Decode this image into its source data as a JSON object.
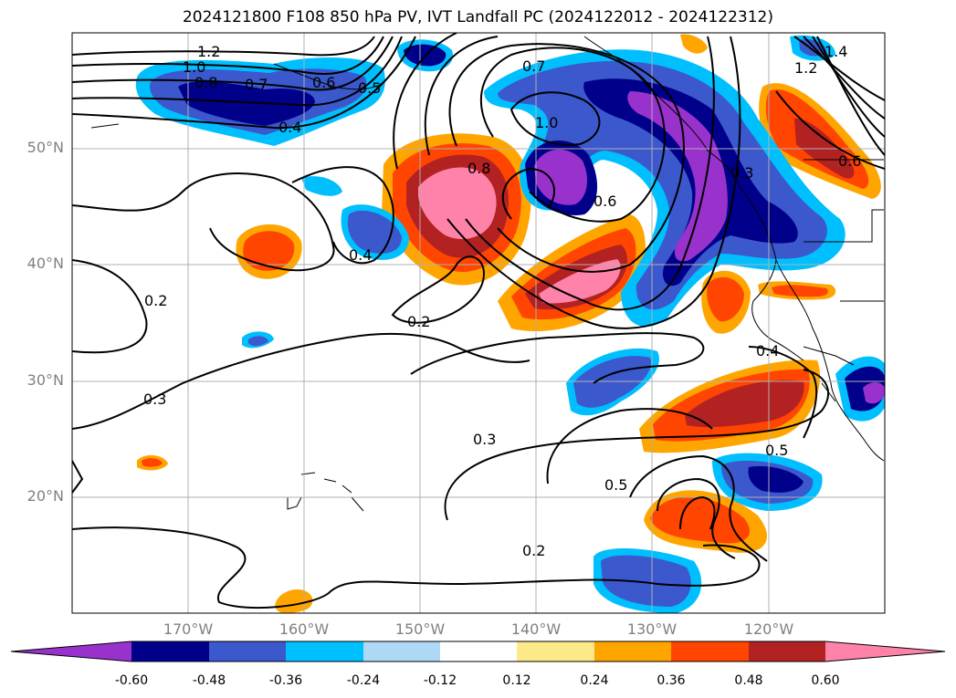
{
  "title": "2024121800 F108 850 hPa PV, IVT Landfall PC (2024122012 - 2024122312)",
  "map": {
    "projection": "lat-lon",
    "lon_range": [
      -180,
      -110
    ],
    "lat_range": [
      10,
      60
    ],
    "x_ticks": [
      "170°W",
      "160°W",
      "150°W",
      "140°W",
      "130°W",
      "120°W"
    ],
    "y_ticks": [
      "50°N",
      "40°N",
      "30°N",
      "20°N"
    ],
    "grid": true,
    "contour_labels": [
      "1.2",
      "1.0",
      "0.8",
      "0.7",
      "0.6",
      "0.5",
      "0.4",
      "0.7",
      "1.0",
      "0.8",
      "0.6",
      "0.4",
      "0.2",
      "0.2",
      "0.3",
      "0.3",
      "0.5",
      "0.5",
      "0.2",
      "0.4",
      "1.4",
      "1.2",
      "0.3",
      "0.6"
    ]
  },
  "colorbar": {
    "levels": [
      "-0.60",
      "-0.48",
      "-0.36",
      "-0.24",
      "-0.12",
      "0.12",
      "0.24",
      "0.36",
      "0.48",
      "0.60"
    ],
    "colors": [
      "#9932cc",
      "#00008b",
      "#3b58cc",
      "#00bfff",
      "#add8f6",
      "#ffffff",
      "#fbe98a",
      "#ffa500",
      "#ff4500",
      "#b22222",
      "#ff83a8"
    ],
    "extend": "both"
  }
}
